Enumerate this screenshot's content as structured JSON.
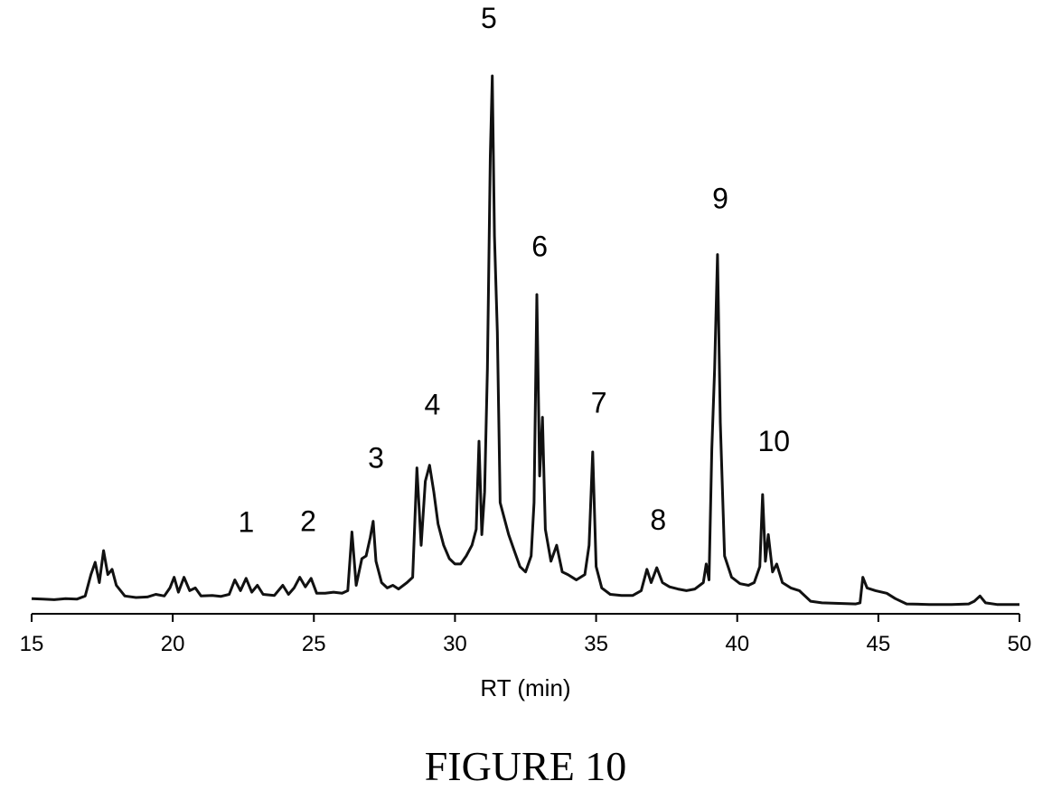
{
  "figure": {
    "caption": "FIGURE 10"
  },
  "chart_data": {
    "type": "line",
    "title": "",
    "xlabel": "RT (min)",
    "ylabel": "",
    "xlim": [
      15,
      50
    ],
    "ylim": [
      0,
      100
    ],
    "xticks": [
      15,
      20,
      25,
      30,
      35,
      40,
      45,
      50
    ],
    "xtick_labels": [
      "15",
      "20",
      "25",
      "30",
      "35",
      "40",
      "45",
      "50"
    ],
    "grid": false,
    "legend": "none",
    "line_color": "#111111",
    "peak_labels": [
      {
        "text": "1",
        "x": 22.6,
        "y": 14.5
      },
      {
        "text": "2",
        "x": 24.8,
        "y": 14.7
      },
      {
        "text": "3",
        "x": 27.2,
        "y": 26.5
      },
      {
        "text": "4",
        "x": 29.2,
        "y": 36.5
      },
      {
        "text": "5",
        "x": 31.2,
        "y": 109.0
      },
      {
        "text": "6",
        "x": 33.0,
        "y": 66.2
      },
      {
        "text": "7",
        "x": 35.1,
        "y": 36.9
      },
      {
        "text": "8",
        "x": 37.2,
        "y": 14.9
      },
      {
        "text": "9",
        "x": 39.4,
        "y": 75.2
      },
      {
        "text": "10",
        "x": 41.3,
        "y": 29.7
      }
    ],
    "series": [
      {
        "values": [
          [
            15.0,
            2.0
          ],
          [
            15.4,
            1.9
          ],
          [
            15.8,
            1.8
          ],
          [
            16.2,
            2.0
          ],
          [
            16.6,
            1.9
          ],
          [
            16.9,
            2.5
          ],
          [
            17.1,
            6.5
          ],
          [
            17.25,
            8.8
          ],
          [
            17.4,
            5.0
          ],
          [
            17.55,
            11.0
          ],
          [
            17.7,
            6.5
          ],
          [
            17.85,
            7.5
          ],
          [
            18.0,
            4.5
          ],
          [
            18.3,
            2.5
          ],
          [
            18.7,
            2.2
          ],
          [
            19.1,
            2.3
          ],
          [
            19.4,
            2.8
          ],
          [
            19.7,
            2.5
          ],
          [
            19.9,
            4.0
          ],
          [
            20.05,
            6.0
          ],
          [
            20.2,
            3.2
          ],
          [
            20.4,
            6.0
          ],
          [
            20.6,
            3.5
          ],
          [
            20.8,
            4.0
          ],
          [
            21.0,
            2.5
          ],
          [
            21.4,
            2.6
          ],
          [
            21.7,
            2.4
          ],
          [
            22.0,
            2.8
          ],
          [
            22.2,
            5.5
          ],
          [
            22.4,
            3.5
          ],
          [
            22.6,
            5.8
          ],
          [
            22.8,
            3.2
          ],
          [
            23.0,
            4.5
          ],
          [
            23.2,
            2.8
          ],
          [
            23.6,
            2.6
          ],
          [
            23.9,
            4.5
          ],
          [
            24.1,
            2.8
          ],
          [
            24.3,
            4.0
          ],
          [
            24.5,
            6.0
          ],
          [
            24.7,
            4.2
          ],
          [
            24.9,
            5.8
          ],
          [
            25.1,
            3.0
          ],
          [
            25.4,
            3.0
          ],
          [
            25.7,
            3.2
          ],
          [
            26.0,
            3.0
          ],
          [
            26.2,
            3.5
          ],
          [
            26.35,
            14.5
          ],
          [
            26.5,
            4.5
          ],
          [
            26.7,
            9.5
          ],
          [
            26.85,
            10.0
          ],
          [
            27.0,
            13.5
          ],
          [
            27.1,
            16.5
          ],
          [
            27.2,
            9.0
          ],
          [
            27.4,
            5.0
          ],
          [
            27.6,
            4.0
          ],
          [
            27.8,
            4.5
          ],
          [
            28.0,
            3.8
          ],
          [
            28.3,
            5.0
          ],
          [
            28.5,
            6.0
          ],
          [
            28.65,
            26.5
          ],
          [
            28.8,
            12.0
          ],
          [
            28.95,
            24.0
          ],
          [
            29.1,
            27.0
          ],
          [
            29.25,
            22.0
          ],
          [
            29.4,
            16.0
          ],
          [
            29.6,
            12.0
          ],
          [
            29.8,
            9.5
          ],
          [
            30.0,
            8.5
          ],
          [
            30.2,
            8.5
          ],
          [
            30.4,
            10.0
          ],
          [
            30.6,
            12.0
          ],
          [
            30.75,
            15.0
          ],
          [
            30.85,
            31.5
          ],
          [
            30.95,
            14.0
          ],
          [
            31.05,
            22.0
          ],
          [
            31.15,
            45.0
          ],
          [
            31.25,
            85.0
          ],
          [
            31.32,
            100.0
          ],
          [
            31.4,
            70.0
          ],
          [
            31.5,
            52.0
          ],
          [
            31.6,
            20.0
          ],
          [
            31.75,
            17.0
          ],
          [
            31.9,
            14.0
          ],
          [
            32.1,
            11.0
          ],
          [
            32.3,
            8.0
          ],
          [
            32.5,
            7.0
          ],
          [
            32.7,
            10.0
          ],
          [
            32.8,
            20.0
          ],
          [
            32.9,
            59.0
          ],
          [
            33.0,
            25.0
          ],
          [
            33.1,
            36.0
          ],
          [
            33.2,
            15.0
          ],
          [
            33.4,
            9.0
          ],
          [
            33.6,
            12.0
          ],
          [
            33.8,
            7.0
          ],
          [
            34.0,
            6.5
          ],
          [
            34.3,
            5.5
          ],
          [
            34.6,
            6.5
          ],
          [
            34.75,
            12.0
          ],
          [
            34.88,
            29.5
          ],
          [
            35.0,
            8.0
          ],
          [
            35.2,
            4.0
          ],
          [
            35.5,
            2.8
          ],
          [
            35.9,
            2.6
          ],
          [
            36.3,
            2.6
          ],
          [
            36.6,
            3.5
          ],
          [
            36.8,
            7.5
          ],
          [
            36.95,
            5.0
          ],
          [
            37.15,
            7.8
          ],
          [
            37.35,
            5.0
          ],
          [
            37.6,
            4.2
          ],
          [
            37.9,
            3.8
          ],
          [
            38.2,
            3.5
          ],
          [
            38.5,
            3.8
          ],
          [
            38.8,
            5.0
          ],
          [
            38.9,
            8.5
          ],
          [
            39.0,
            5.5
          ],
          [
            39.1,
            30.0
          ],
          [
            39.2,
            45.0
          ],
          [
            39.3,
            66.5
          ],
          [
            39.4,
            35.0
          ],
          [
            39.55,
            10.0
          ],
          [
            39.8,
            6.0
          ],
          [
            40.1,
            4.8
          ],
          [
            40.4,
            4.5
          ],
          [
            40.6,
            5.0
          ],
          [
            40.8,
            8.0
          ],
          [
            40.9,
            21.5
          ],
          [
            41.0,
            9.0
          ],
          [
            41.1,
            14.0
          ],
          [
            41.25,
            7.0
          ],
          [
            41.4,
            8.5
          ],
          [
            41.6,
            5.0
          ],
          [
            41.9,
            4.0
          ],
          [
            42.2,
            3.5
          ],
          [
            42.6,
            1.5
          ],
          [
            43.0,
            1.2
          ],
          [
            43.6,
            1.1
          ],
          [
            44.2,
            1.0
          ],
          [
            44.35,
            1.2
          ],
          [
            44.45,
            6.0
          ],
          [
            44.6,
            4.0
          ],
          [
            44.9,
            3.5
          ],
          [
            45.3,
            3.0
          ],
          [
            45.6,
            2.0
          ],
          [
            46.0,
            1.0
          ],
          [
            46.8,
            0.9
          ],
          [
            47.6,
            0.9
          ],
          [
            48.2,
            1.0
          ],
          [
            48.4,
            1.5
          ],
          [
            48.6,
            2.5
          ],
          [
            48.8,
            1.2
          ],
          [
            49.2,
            0.9
          ],
          [
            50.0,
            0.9
          ]
        ]
      }
    ]
  }
}
